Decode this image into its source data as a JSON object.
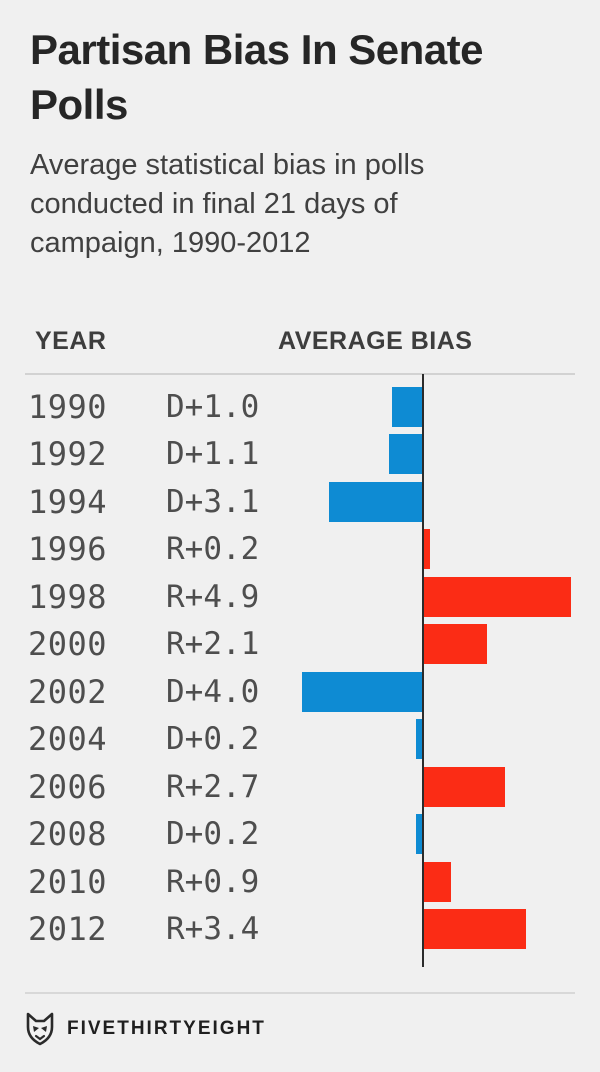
{
  "title": "Partisan Bias In Senate Polls",
  "subtitle": "Average statistical bias in polls conducted in final 21 days of campaign, 1990-2012",
  "table": {
    "year_header": "YEAR",
    "bias_header": "AVERAGE BIAS"
  },
  "chart_data": {
    "type": "bar",
    "orientation": "horizontal",
    "title": "Partisan Bias In Senate Polls",
    "subtitle": "Average statistical bias in polls conducted in final 21 days of campaign, 1990-2012",
    "value_unit": "percentage points of bias",
    "baseline": 0,
    "xlim_left_dem": 4.9,
    "xlim_right_rep": 4.9,
    "categories": [
      "1990",
      "1992",
      "1994",
      "1996",
      "1998",
      "2000",
      "2002",
      "2004",
      "2006",
      "2008",
      "2010",
      "2012"
    ],
    "rows": [
      {
        "year": "1990",
        "label": "D+1.0",
        "party": "D",
        "value": 1.0
      },
      {
        "year": "1992",
        "label": "D+1.1",
        "party": "D",
        "value": 1.1
      },
      {
        "year": "1994",
        "label": "D+3.1",
        "party": "D",
        "value": 3.1
      },
      {
        "year": "1996",
        "label": "R+0.2",
        "party": "R",
        "value": 0.2
      },
      {
        "year": "1998",
        "label": "R+4.9",
        "party": "R",
        "value": 4.9
      },
      {
        "year": "2000",
        "label": "R+2.1",
        "party": "R",
        "value": 2.1
      },
      {
        "year": "2002",
        "label": "D+4.0",
        "party": "D",
        "value": 4.0
      },
      {
        "year": "2004",
        "label": "D+0.2",
        "party": "D",
        "value": 0.2
      },
      {
        "year": "2006",
        "label": "R+2.7",
        "party": "R",
        "value": 2.7
      },
      {
        "year": "2008",
        "label": "D+0.2",
        "party": "D",
        "value": 0.2
      },
      {
        "year": "2010",
        "label": "R+0.9",
        "party": "R",
        "value": 0.9
      },
      {
        "year": "2012",
        "label": "R+3.4",
        "party": "R",
        "value": 3.4
      }
    ],
    "colors": {
      "democrat": "#0e8bd3",
      "republican": "#fb2c15",
      "axis": "#2b2b2b",
      "background": "#f0f0f0"
    },
    "legend": "none",
    "grid": false
  },
  "footer": {
    "brand": "FIVETHIRTYEIGHT",
    "logo": "fivethirtyeight-fox-icon"
  }
}
